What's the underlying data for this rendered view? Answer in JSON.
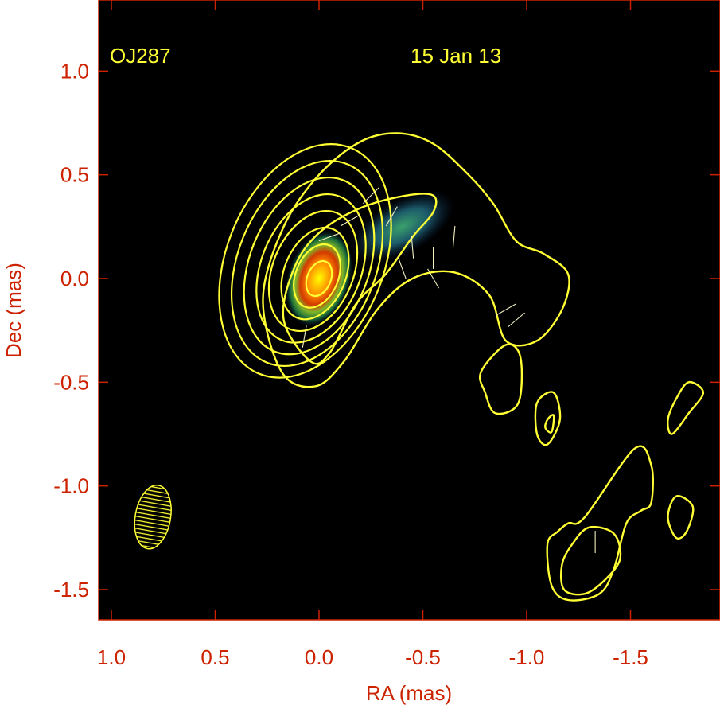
{
  "chart_data": {
    "type": "contour",
    "source_label": "OJ287",
    "epoch_label": "15 Jan 13",
    "xlabel": "RA (mas)",
    "ylabel": "Dec (mas)",
    "xlim": [
      1.05,
      -1.92
    ],
    "ylim": [
      -1.65,
      1.33
    ],
    "x_ticks": [
      {
        "value": 1.0,
        "label": "1.0"
      },
      {
        "value": 0.5,
        "label": "0.5"
      },
      {
        "value": 0.0,
        "label": "0.0"
      },
      {
        "value": -0.5,
        "label": "-0.5"
      },
      {
        "value": -1.0,
        "label": "-1.0"
      },
      {
        "value": -1.5,
        "label": "-1.5"
      }
    ],
    "y_ticks": [
      {
        "value": 1.0,
        "label": "1.0"
      },
      {
        "value": 0.5,
        "label": "0.5"
      },
      {
        "value": 0.0,
        "label": "0.0"
      },
      {
        "value": -0.5,
        "label": "-0.5"
      },
      {
        "value": -1.0,
        "label": "-1.0"
      },
      {
        "value": -1.5,
        "label": "-1.5"
      }
    ],
    "grid": false,
    "intensity_peak": {
      "ra": 0.0,
      "dec": 0.0
    },
    "beam": {
      "ra": 0.8,
      "dec": -1.15,
      "major": 0.31,
      "minor": 0.17,
      "pa_deg": 10
    },
    "outer_contours": [
      [
        [
          -0.38,
          0.7
        ],
        [
          -0.55,
          0.65
        ],
        [
          -0.72,
          0.5
        ],
        [
          -0.84,
          0.36
        ],
        [
          -0.95,
          0.18
        ],
        [
          -1.08,
          0.12
        ],
        [
          -1.2,
          0.02
        ],
        [
          -1.17,
          -0.15
        ],
        [
          -1.05,
          -0.3
        ],
        [
          -0.9,
          -0.3
        ],
        [
          -0.82,
          -0.08
        ],
        [
          -0.65,
          0.03
        ],
        [
          -0.45,
          0.0
        ],
        [
          -0.28,
          -0.15
        ],
        [
          -0.12,
          -0.4
        ],
        [
          0.02,
          -0.52
        ],
        [
          0.18,
          -0.45
        ],
        [
          0.27,
          -0.1
        ],
        [
          0.17,
          0.25
        ],
        [
          0.0,
          0.5
        ],
        [
          -0.2,
          0.66
        ]
      ],
      [
        [
          -0.78,
          -0.45
        ],
        [
          -0.9,
          -0.32
        ],
        [
          -0.97,
          -0.38
        ],
        [
          -0.96,
          -0.6
        ],
        [
          -0.85,
          -0.65
        ],
        [
          -0.8,
          -0.55
        ]
      ],
      [
        [
          -1.05,
          -0.6
        ],
        [
          -1.13,
          -0.55
        ],
        [
          -1.16,
          -0.68
        ],
        [
          -1.1,
          -0.8
        ],
        [
          -1.05,
          -0.75
        ]
      ],
      [
        [
          -1.1,
          -0.68
        ],
        [
          -1.13,
          -0.66
        ],
        [
          -1.12,
          -0.74
        ],
        [
          -1.09,
          -0.72
        ]
      ],
      [
        [
          -1.78,
          -0.5
        ],
        [
          -1.85,
          -0.55
        ],
        [
          -1.78,
          -0.65
        ],
        [
          -1.7,
          -0.75
        ],
        [
          -1.68,
          -0.68
        ],
        [
          -1.72,
          -0.58
        ]
      ],
      [
        [
          -1.72,
          -1.05
        ],
        [
          -1.8,
          -1.1
        ],
        [
          -1.77,
          -1.22
        ],
        [
          -1.72,
          -1.25
        ],
        [
          -1.68,
          -1.15
        ]
      ],
      [
        [
          -1.28,
          -1.15
        ],
        [
          -1.52,
          -0.82
        ],
        [
          -1.6,
          -0.9
        ],
        [
          -1.6,
          -1.08
        ],
        [
          -1.55,
          -1.12
        ],
        [
          -1.48,
          -1.18
        ],
        [
          -1.42,
          -1.4
        ],
        [
          -1.35,
          -1.52
        ],
        [
          -1.2,
          -1.55
        ],
        [
          -1.12,
          -1.48
        ],
        [
          -1.1,
          -1.28
        ],
        [
          -1.15,
          -1.22
        ],
        [
          -1.2,
          -1.18
        ]
      ]
    ],
    "inner_contours": [
      [
        [
          -0.55,
          0.32
        ],
        [
          -0.45,
          0.2
        ],
        [
          -0.32,
          0.02
        ],
        [
          -0.18,
          -0.12
        ],
        [
          -0.05,
          -0.36
        ],
        [
          0.04,
          -0.4
        ],
        [
          0.17,
          -0.2
        ],
        [
          0.12,
          0.05
        ],
        [
          0.0,
          0.22
        ],
        [
          -0.2,
          0.34
        ],
        [
          -0.42,
          0.4
        ],
        [
          -0.55,
          0.4
        ]
      ],
      [
        [
          -1.22,
          -1.28
        ],
        [
          -1.3,
          -1.2
        ],
        [
          -1.42,
          -1.23
        ],
        [
          -1.45,
          -1.35
        ],
        [
          -1.38,
          -1.45
        ],
        [
          -1.28,
          -1.52
        ],
        [
          -1.18,
          -1.5
        ],
        [
          -1.17,
          -1.38
        ]
      ]
    ],
    "polarization_vectors": [
      {
        "ra": -0.45,
        "dec": 0.15,
        "angle_deg": 95
      },
      {
        "ra": -0.55,
        "dec": 0.1,
        "angle_deg": 90
      },
      {
        "ra": -0.65,
        "dec": 0.2,
        "angle_deg": 85
      },
      {
        "ra": -0.35,
        "dec": 0.3,
        "angle_deg": 60
      },
      {
        "ra": -0.25,
        "dec": 0.4,
        "angle_deg": 45
      },
      {
        "ra": -0.15,
        "dec": 0.28,
        "angle_deg": 30
      },
      {
        "ra": -0.05,
        "dec": 0.2,
        "angle_deg": 20
      },
      {
        "ra": -0.55,
        "dec": 0.0,
        "angle_deg": 120
      },
      {
        "ra": -0.9,
        "dec": -0.15,
        "angle_deg": 30
      },
      {
        "ra": -0.95,
        "dec": -0.2,
        "angle_deg": 40
      },
      {
        "ra": -1.33,
        "dec": -1.27,
        "angle_deg": 90
      },
      {
        "ra": 0.07,
        "dec": -0.28,
        "angle_deg": 80
      },
      {
        "ra": -0.4,
        "dec": 0.05,
        "angle_deg": 110
      }
    ],
    "colors": {
      "background": "#000000",
      "contour": "#ffff33",
      "tick_label": "#cc2200",
      "annotation": "#ffff33",
      "core_peak": "#ffff00",
      "core_outer": "#1a6b3a"
    }
  }
}
